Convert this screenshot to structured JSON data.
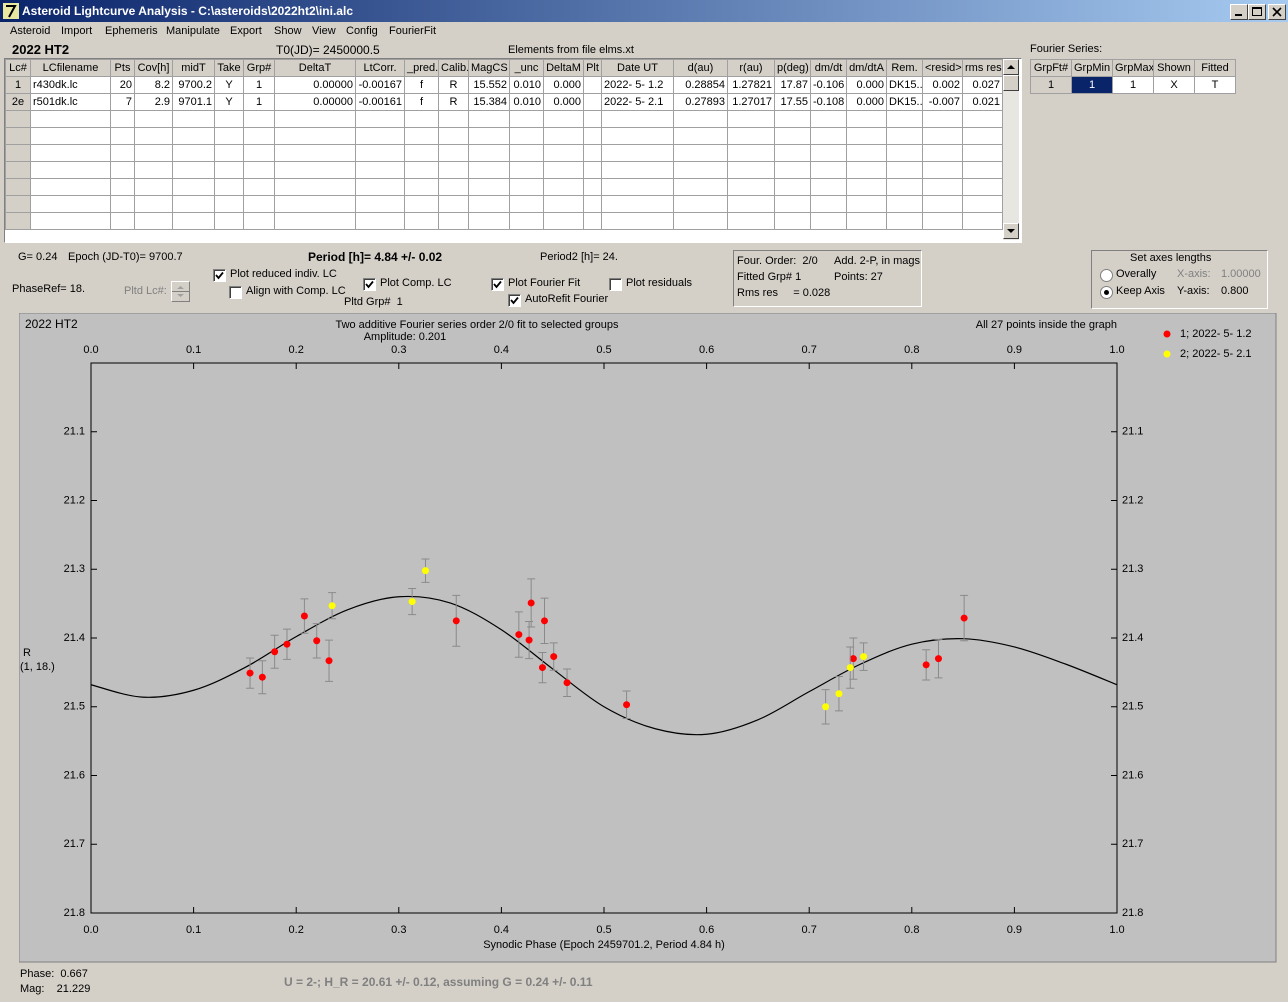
{
  "window": {
    "title": "Asteroid Lightcurve Analysis - C:\\asteroids\\2022ht2\\ini.alc"
  },
  "menu": [
    "Asteroid",
    "Import",
    "Ephemeris",
    "Manipulate",
    "Export",
    "Show",
    "View",
    "Config",
    "FourierFit"
  ],
  "header": {
    "object": "2022 HT2",
    "t0": "T0(JD)= 2450000.5",
    "elements": "Elements from file elms.xt"
  },
  "lc_table": {
    "columns": [
      "Lc#",
      "LCfilename",
      "Pts",
      "Cov[h]",
      "midT",
      "Take",
      "Grp#",
      "DeltaT",
      "LtCorr.",
      "_pred.",
      "Calib.",
      "MagCS",
      "_unc",
      "DeltaM",
      "Plt",
      "Date UT",
      "d(au)",
      "r(au)",
      "p(deg)",
      "dm/dt",
      "dm/dtA",
      "Rem.",
      "<resid>",
      "rms res"
    ],
    "rows": [
      [
        "1",
        "r430dk.lc",
        "20",
        "8.2",
        "9700.2",
        "Y",
        "1",
        "0.00000",
        "-0.00167",
        "f",
        "R",
        "15.552",
        "0.010",
        "0.000",
        null,
        "2022- 5- 1.2",
        "0.28854",
        "1.27821",
        "17.87",
        "-0.106",
        "0.000",
        "DK15..",
        "0.002",
        "0.027"
      ],
      [
        "2e",
        "r501dk.lc",
        "7",
        "2.9",
        "9701.1",
        "Y",
        "1",
        "0.00000",
        "-0.00161",
        "f",
        "R",
        "15.384",
        "0.010",
        "0.000",
        null,
        "2022- 5- 2.1",
        "0.27893",
        "1.27017",
        "17.55",
        "-0.108",
        "0.000",
        "DK15..",
        "-0.007",
        "0.021"
      ]
    ]
  },
  "fourier": {
    "label": "Fourier Series:",
    "columns": [
      "GrpFt#",
      "GrpMin",
      "GrpMax",
      "Shown",
      "Fitted"
    ],
    "rows": [
      [
        "1",
        "1",
        "1",
        "X",
        "T"
      ]
    ]
  },
  "info": {
    "g": "G= 0.24",
    "epoch": "Epoch (JD-T0)= 9700.7",
    "period": "Period [h]= 4.84 +/- 0.02",
    "period2": "Period2 [h]= 24.",
    "phase_ref": "PhaseRef= 18.",
    "pltd_lc": "Pltd Lc#:",
    "pltd_grp": "Pltd Grp#  1"
  },
  "options": [
    {
      "label": "Plot reduced indiv. LC",
      "checked": true
    },
    {
      "label": "Align with Comp. LC",
      "checked": false
    },
    {
      "label": "Plot Comp. LC",
      "checked": true
    },
    {
      "label": "Plot Fourier Fit",
      "checked": true
    },
    {
      "label": "AutoRefit Fourier",
      "checked": true
    },
    {
      "label": "Plot residuals",
      "checked": false
    }
  ],
  "fit_box": {
    "order": "Four. Order:  2/0",
    "add": "Add. 2-P, in mags",
    "fitted_grp": "Fitted Grp# 1",
    "points": "Points: 27",
    "rms": "Rms res     = 0.028"
  },
  "axes_box": {
    "title": "Set axes lengths",
    "modes": [
      {
        "label": "Overally",
        "selected": false
      },
      {
        "label": "Keep Axis",
        "selected": true
      }
    ],
    "x_label": "X-axis:",
    "x_value": "1.00000",
    "y_label": "Y-axis:",
    "y_value": "0.800"
  },
  "chart_data": {
    "type": "scatter",
    "object": "2022 HT2",
    "title": "Two additive Fourier series order 2/0 fit to selected groups",
    "subtitle": "Amplitude: 0.201",
    "annotation": "All 27 points inside the graph",
    "y_label": "R",
    "y_label2": "(1, 18.)",
    "x_label": "Synodic Phase (Epoch 2459701.2, Period 4.84 h)",
    "xlim": [
      0,
      1
    ],
    "ylim": [
      21.8,
      21.0
    ],
    "xticks": [
      {
        "value": 0,
        "label": "0.0"
      },
      0.1,
      0.2,
      0.3,
      0.4,
      0.5,
      0.6,
      0.7,
      0.8,
      0.9,
      {
        "value": 1,
        "label": "1.0"
      }
    ],
    "yticks": [
      21.1,
      21.2,
      21.3,
      21.4,
      21.5,
      21.6,
      21.7,
      21.8
    ],
    "series": [
      {
        "name": "1; 2022- 5- 1.2",
        "color": "#ff0000",
        "x": [
          0.155,
          0.167,
          0.179,
          0.191,
          0.208,
          0.22,
          0.232,
          0.356,
          0.417,
          0.427,
          0.429,
          0.44,
          0.442,
          0.451,
          0.464,
          0.522,
          0.743,
          0.814,
          0.826,
          0.851
        ],
        "values": [
          21.451,
          21.457,
          21.42,
          21.409,
          21.368,
          21.404,
          21.433,
          21.375,
          21.395,
          21.403,
          21.349,
          21.443,
          21.375,
          21.427,
          21.465,
          21.497,
          21.43,
          21.439,
          21.43,
          21.371
        ],
        "errors": [
          0.022,
          0.024,
          0.024,
          0.022,
          0.025,
          0.025,
          0.03,
          0.037,
          0.033,
          0.027,
          0.035,
          0.022,
          0.033,
          0.02,
          0.02,
          0.02,
          0.03,
          0.022,
          0.028,
          0.033
        ]
      },
      {
        "name": "2; 2022- 5- 2.1",
        "color": "#ffff00",
        "x": [
          0.235,
          0.313,
          0.326,
          0.716,
          0.729,
          0.74,
          0.753
        ],
        "values": [
          21.353,
          21.347,
          21.302,
          21.5,
          21.481,
          21.443,
          21.427
        ],
        "errors": [
          0.019,
          0.019,
          0.017,
          0.025,
          0.025,
          0.03,
          0.02
        ]
      }
    ],
    "fit": {
      "color": "#000000",
      "x": [
        0,
        0.05,
        0.1,
        0.15,
        0.2,
        0.25,
        0.3,
        0.35,
        0.4,
        0.45,
        0.5,
        0.55,
        0.6,
        0.65,
        0.7,
        0.75,
        0.8,
        0.85,
        0.9,
        0.95,
        1
      ],
      "values": [
        21.468,
        21.486,
        21.476,
        21.443,
        21.398,
        21.359,
        21.34,
        21.349,
        21.388,
        21.445,
        21.5,
        21.532,
        21.54,
        21.519,
        21.478,
        21.438,
        21.409,
        21.401,
        21.413,
        21.438,
        21.468
      ]
    }
  },
  "status": {
    "phase": "Phase:  0.667",
    "mag": "Mag:    21.229",
    "result": "U = 2-; H_R = 20.61 +/- 0.12, assuming G = 0.24 +/- 0.11"
  }
}
